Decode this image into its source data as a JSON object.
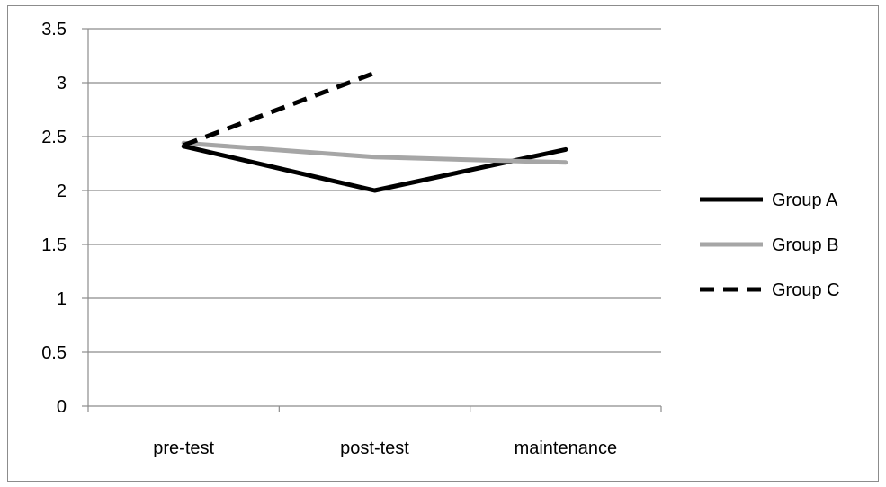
{
  "chart_data": {
    "type": "line",
    "title": "",
    "xlabel": "",
    "ylabel": "",
    "categories": [
      "pre-test",
      "post-test",
      "maintenance"
    ],
    "ylim": [
      0,
      3.5
    ],
    "yticks": [
      "0",
      "0.5",
      "1",
      "1.5",
      "2",
      "2.5",
      "3",
      "3.5"
    ],
    "grid": true,
    "legend_position": "right",
    "series": [
      {
        "name": "Group A",
        "values": [
          2.41,
          2.0,
          2.38
        ],
        "color": "#000000",
        "style": "solid"
      },
      {
        "name": "Group B",
        "values": [
          2.44,
          2.31,
          2.26
        ],
        "color": "#a6a6a6",
        "style": "solid"
      },
      {
        "name": "Group C",
        "values": [
          2.42,
          3.09,
          null
        ],
        "color": "#000000",
        "style": "dashed"
      }
    ]
  }
}
